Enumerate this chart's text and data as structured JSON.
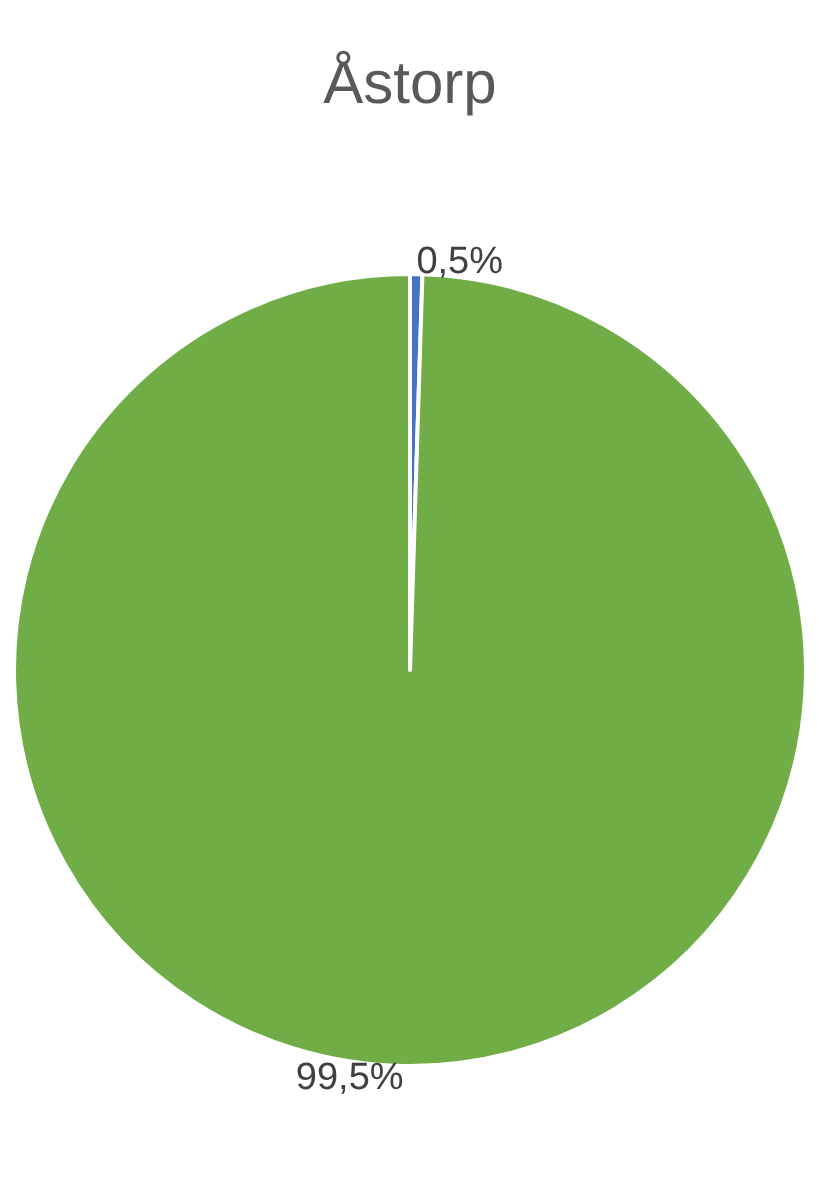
{
  "chart_data": {
    "type": "pie",
    "title": "Åstorp",
    "categories": [
      null,
      null
    ],
    "values": [
      0.5,
      99.5
    ],
    "colors": [
      "#4472c4",
      "#70ad47"
    ],
    "value_labels": [
      "0,5%",
      "99,5%"
    ]
  }
}
